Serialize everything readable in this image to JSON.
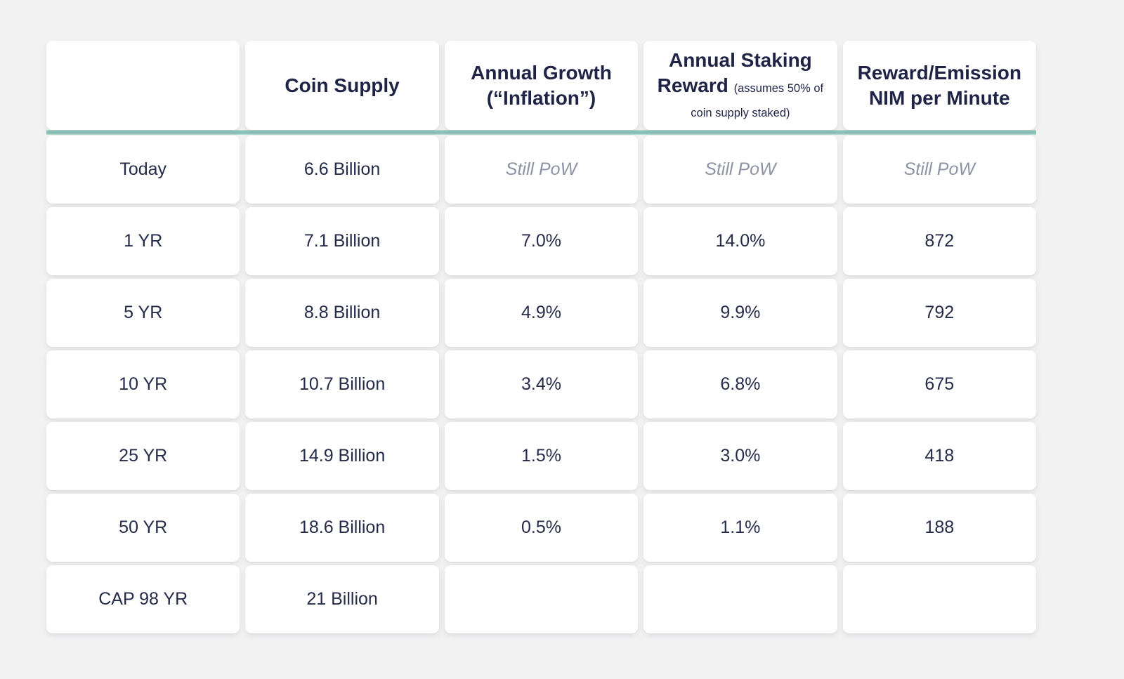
{
  "colors": {
    "background": "#f2f2f3",
    "cell_background": "#ffffff",
    "accent_teal": "#8cc4b9",
    "header_text": "#1f2447",
    "body_text": "#262b49",
    "muted_text": "#8e93a4"
  },
  "table": {
    "header": {
      "col1": "",
      "col2": "Coin Supply",
      "col3_line1": "Annual Growth",
      "col3_line2": "(“Inflation”)",
      "col4_main": "Annual Staking Reward",
      "col4_note": "(assumes 50% of coin supply staked)",
      "col5_line1": "Reward/Emission",
      "col5_line2": "NIM per Minute"
    },
    "rows": [
      {
        "cells": [
          {
            "text": "Today"
          },
          {
            "text": "6.6 Billion"
          },
          {
            "text": "Still PoW",
            "muted": true
          },
          {
            "text": "Still PoW",
            "muted": true
          },
          {
            "text": "Still PoW",
            "muted": true
          }
        ]
      },
      {
        "cells": [
          {
            "text": "1 YR"
          },
          {
            "text": "7.1 Billion"
          },
          {
            "text": "7.0%"
          },
          {
            "text": "14.0%"
          },
          {
            "text": "872"
          }
        ]
      },
      {
        "cells": [
          {
            "text": "5 YR"
          },
          {
            "text": "8.8 Billion"
          },
          {
            "text": "4.9%"
          },
          {
            "text": "9.9%"
          },
          {
            "text": "792"
          }
        ]
      },
      {
        "cells": [
          {
            "text": "10 YR"
          },
          {
            "text": "10.7 Billion"
          },
          {
            "text": "3.4%"
          },
          {
            "text": "6.8%"
          },
          {
            "text": "675"
          }
        ]
      },
      {
        "cells": [
          {
            "text": "25 YR"
          },
          {
            "text": "14.9 Billion"
          },
          {
            "text": "1.5%"
          },
          {
            "text": "3.0%"
          },
          {
            "text": "418"
          }
        ]
      },
      {
        "cells": [
          {
            "text": "50 YR"
          },
          {
            "text": "18.6 Billion"
          },
          {
            "text": "0.5%"
          },
          {
            "text": "1.1%"
          },
          {
            "text": "188"
          }
        ]
      },
      {
        "cells": [
          {
            "text": "CAP 98 YR"
          },
          {
            "text": "21 Billion"
          },
          {
            "text": ""
          },
          {
            "text": ""
          },
          {
            "text": ""
          }
        ]
      }
    ]
  },
  "chart_data": {
    "type": "table",
    "columns": [
      "",
      "Coin Supply",
      "Annual Growth (“Inflation”)",
      "Annual Staking Reward (assumes 50% of coin supply staked)",
      "Reward/Emission NIM per Minute"
    ],
    "rows": [
      [
        "Today",
        "6.6 Billion",
        "Still PoW",
        "Still PoW",
        "Still PoW"
      ],
      [
        "1 YR",
        "7.1 Billion",
        "7.0%",
        "14.0%",
        "872"
      ],
      [
        "5 YR",
        "8.8 Billion",
        "4.9%",
        "9.9%",
        "792"
      ],
      [
        "10 YR",
        "10.7 Billion",
        "3.4%",
        "6.8%",
        "675"
      ],
      [
        "25 YR",
        "14.9 Billion",
        "1.5%",
        "3.0%",
        "418"
      ],
      [
        "50 YR",
        "18.6 Billion",
        "0.5%",
        "1.1%",
        "188"
      ],
      [
        "CAP 98 YR",
        "21 Billion",
        "",
        "",
        ""
      ]
    ],
    "layout_hints": {
      "header_divider_color": "#8cc4b9",
      "muted_cells_note": "Row 'Today' columns 3-5 shown gray italic as 'Still PoW'"
    }
  }
}
